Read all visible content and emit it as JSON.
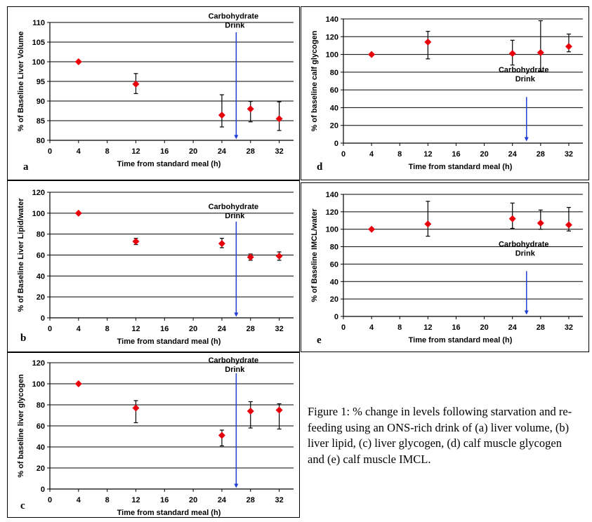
{
  "caption": "Figure 1:  % change in levels following starvation and re-feeding using an ONS-rich drink of (a) liver volume, (b) liver lipid, (c) liver glycogen, (d) calf muscle glycogen and (e) calf muscle IMCL.",
  "colors": {
    "marker": "#e8000b",
    "arrow": "#1f3fd6",
    "grid": "#000000"
  },
  "chart_data": [
    {
      "panel": "a",
      "type": "scatter",
      "xlabel": "Time from standard meal (h)",
      "ylabel": "% of Baseline Liver Volume",
      "xlim": [
        0,
        34
      ],
      "ylim": [
        80,
        110
      ],
      "xticks": [
        0,
        4,
        8,
        12,
        16,
        20,
        24,
        28,
        32
      ],
      "yticks": [
        80,
        85,
        90,
        95,
        100,
        105,
        110
      ],
      "x": [
        4,
        12,
        24,
        28,
        32
      ],
      "y": [
        100,
        94.3,
        86.4,
        88,
        85.5
      ],
      "err_low": [
        0,
        2.4,
        3,
        3.3,
        3
      ],
      "err_high": [
        0,
        2.7,
        5.2,
        1.9,
        4.3
      ],
      "annotation": {
        "lines": [
          "Carbohydrate",
          "Drink"
        ],
        "x": 26,
        "arrow_from": 107.5,
        "arrow_to": 80.3,
        "text_y": 111
      },
      "grid": true
    },
    {
      "panel": "b",
      "type": "scatter",
      "xlabel": "Time from standard meal (h)",
      "ylabel": "% of Baseline Liver Lipid/water",
      "xlim": [
        0,
        34
      ],
      "ylim": [
        0,
        120
      ],
      "xticks": [
        0,
        4,
        8,
        12,
        16,
        20,
        24,
        28,
        32
      ],
      "yticks": [
        0,
        20,
        40,
        60,
        80,
        100,
        120
      ],
      "x": [
        4,
        12,
        24,
        28,
        32
      ],
      "y": [
        100,
        73,
        71,
        58,
        59
      ],
      "err_low": [
        0,
        3,
        4,
        3,
        4
      ],
      "err_high": [
        0,
        3,
        5,
        3,
        4
      ],
      "annotation": {
        "lines": [
          "Carbohydrate",
          "Drink"
        ],
        "x": 26,
        "arrow_from": 92,
        "arrow_to": 1,
        "text_y": 104
      },
      "grid": true
    },
    {
      "panel": "c",
      "type": "scatter",
      "xlabel": "Time from standard meal (h)",
      "ylabel": "% of baseline liver glycogen",
      "xlim": [
        0,
        34
      ],
      "ylim": [
        0,
        120
      ],
      "xticks": [
        0,
        4,
        8,
        12,
        16,
        20,
        24,
        28,
        32
      ],
      "yticks": [
        0,
        20,
        40,
        60,
        80,
        100,
        120
      ],
      "x": [
        4,
        12,
        24,
        28,
        32
      ],
      "y": [
        100,
        77,
        51,
        74,
        75
      ],
      "err_low": [
        0,
        14,
        10,
        16,
        18
      ],
      "err_high": [
        0,
        7,
        5,
        9,
        6
      ],
      "annotation": {
        "lines": [
          "Carbohydrate",
          "Drink"
        ],
        "x": 26,
        "arrow_from": 110,
        "arrow_to": 1,
        "text_y": 120
      },
      "grid": true
    },
    {
      "panel": "d",
      "type": "scatter",
      "xlabel": "Time from standard meal (h)",
      "ylabel": "% of baseline calf glycogen",
      "xlim": [
        0,
        34
      ],
      "ylim": [
        0,
        140
      ],
      "xticks": [
        0,
        4,
        8,
        12,
        16,
        20,
        24,
        28,
        32
      ],
      "yticks": [
        0,
        20,
        40,
        60,
        80,
        100,
        120,
        140
      ],
      "x": [
        4,
        12,
        24,
        28,
        32
      ],
      "y": [
        100,
        114,
        101,
        102,
        109
      ],
      "err_low": [
        0,
        19,
        13,
        21,
        6
      ],
      "err_high": [
        0,
        12,
        15,
        36,
        14
      ],
      "annotation": {
        "lines": [
          "Carbohydrate",
          "Drink"
        ],
        "x": 26,
        "arrow_from": 52,
        "arrow_to": 2,
        "text_y": 80
      },
      "grid": true
    },
    {
      "panel": "e",
      "type": "scatter",
      "xlabel": "Time from standard meal (h)",
      "ylabel": "% of Baseline IMCL/water",
      "xlim": [
        0,
        34
      ],
      "ylim": [
        0,
        140
      ],
      "xticks": [
        0,
        4,
        8,
        12,
        16,
        20,
        24,
        28,
        32
      ],
      "yticks": [
        0,
        20,
        40,
        60,
        80,
        100,
        120,
        140
      ],
      "x": [
        4,
        12,
        24,
        28,
        32
      ],
      "y": [
        100,
        106,
        112,
        107,
        105
      ],
      "err_low": [
        0,
        14,
        11,
        7,
        7
      ],
      "err_high": [
        0,
        26,
        18,
        15,
        20
      ],
      "annotation": {
        "lines": [
          "Carbohydrate",
          "Drink"
        ],
        "x": 26,
        "arrow_from": 52,
        "arrow_to": 2,
        "text_y": 80
      },
      "grid": true
    }
  ]
}
